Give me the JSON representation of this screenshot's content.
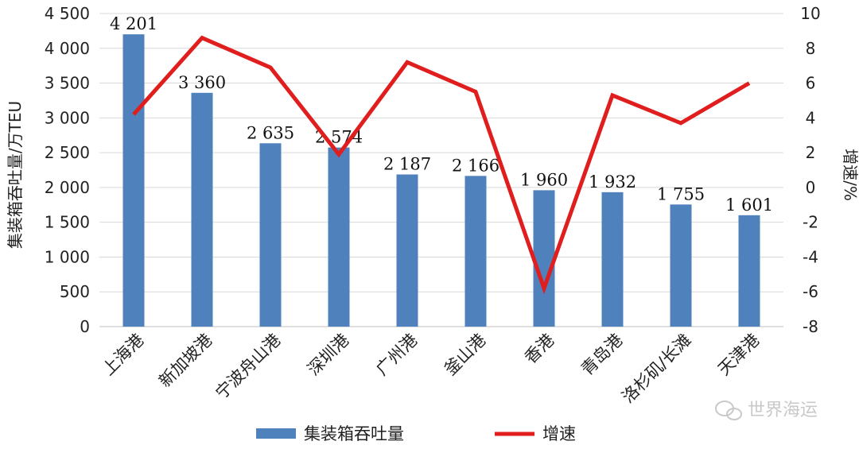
{
  "chart_data": {
    "type": "bar",
    "categories": [
      "上海港",
      "新加坡港",
      "宁波舟山港",
      "深圳港",
      "广州港",
      "釜山港",
      "香港",
      "青岛港",
      "洛杉矶/长滩",
      "天津港"
    ],
    "series": [
      {
        "name": "集装箱吞吐量",
        "type": "bar",
        "axis": "left",
        "color": "#4f81bd",
        "values": [
          4201,
          3360,
          2635,
          2574,
          2187,
          2166,
          1960,
          1932,
          1755,
          1601
        ],
        "labels": [
          "4 201",
          "3 360",
          "2 635",
          "2 574",
          "2 187",
          "2 166",
          "1 960",
          "1 932",
          "1 755",
          "1 601"
        ]
      },
      {
        "name": "增速",
        "type": "line",
        "axis": "right",
        "color": "#e01e1e",
        "values": [
          4.2,
          8.6,
          6.9,
          1.9,
          7.2,
          5.5,
          -5.8,
          5.3,
          3.7,
          6.0
        ]
      }
    ],
    "y_left": {
      "label": "集装箱吞吐量/万TEU",
      "min": 0,
      "max": 4500,
      "step": 500,
      "tick_labels": [
        "0",
        "500",
        "1 000",
        "1 500",
        "2 000",
        "2 500",
        "3 000",
        "3 500",
        "4 000",
        "4 500"
      ]
    },
    "y_right": {
      "label": "增速/%",
      "min": -8,
      "max": 10,
      "step": 2,
      "tick_labels": [
        "-8",
        "-6",
        "-4",
        "-2",
        "0",
        "2",
        "4",
        "6",
        "8",
        "10"
      ]
    },
    "grid": true,
    "legend_position": "bottom"
  },
  "watermark": {
    "text": "世界海运",
    "icon": "wechat-icon"
  }
}
